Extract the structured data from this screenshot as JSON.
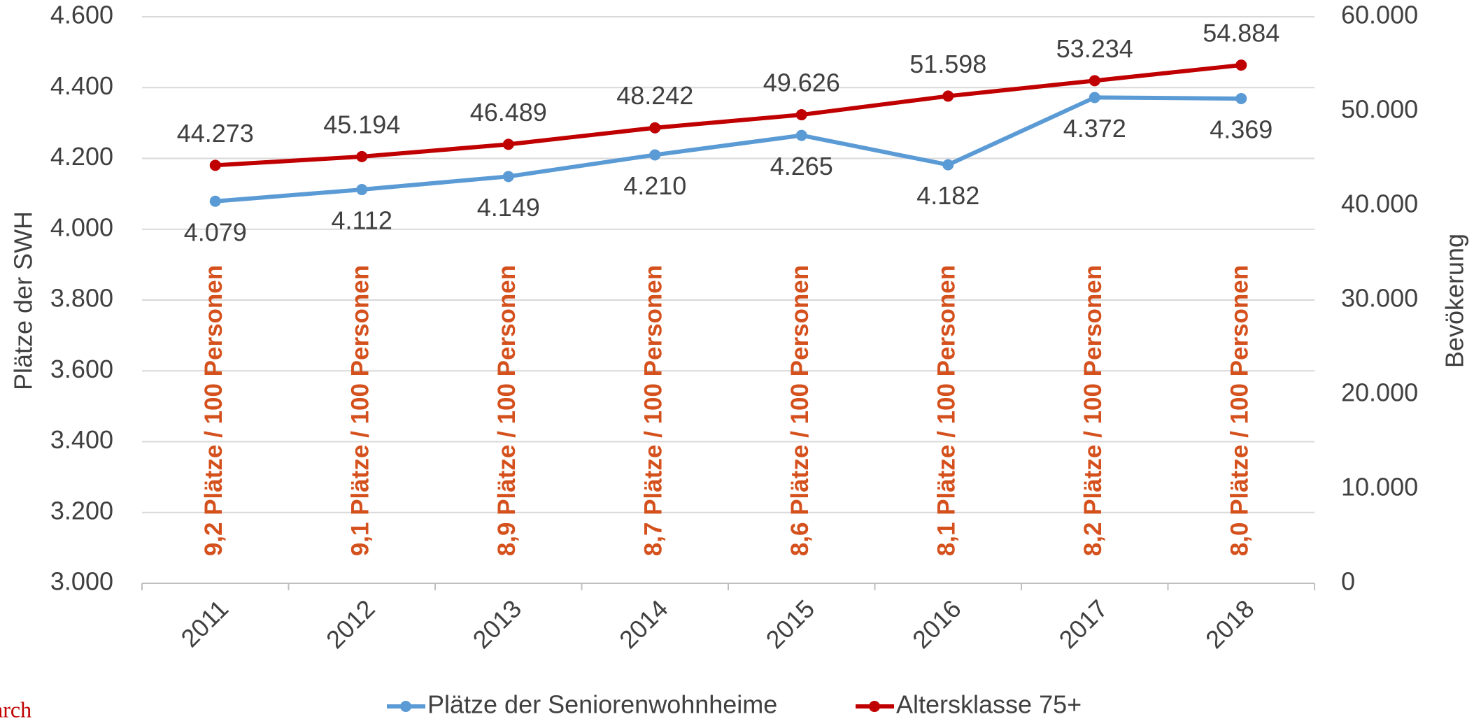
{
  "chart_data": {
    "type": "line",
    "categories": [
      "2011",
      "2012",
      "2013",
      "2014",
      "2015",
      "2016",
      "2017",
      "2018"
    ],
    "series": [
      {
        "name": "Plätze der Seniorenwohnheime",
        "color": "#5b9bd5",
        "axis": "y",
        "values": [
          4079,
          4112,
          4149,
          4210,
          4265,
          4182,
          4372,
          4369
        ],
        "value_labels": [
          "4.079",
          "4.112",
          "4.149",
          "4.210",
          "4.265",
          "4.182",
          "4.372",
          "4.369"
        ]
      },
      {
        "name": "Altersklasse 75+",
        "color": "#c00000",
        "axis": "y2",
        "values": [
          44273,
          45194,
          46489,
          48242,
          49626,
          51598,
          53234,
          54884
        ],
        "value_labels": [
          "44.273",
          "45.194",
          "46.489",
          "48.242",
          "49.626",
          "51.598",
          "53.234",
          "54.884"
        ]
      }
    ],
    "annotations": [
      "9,2 Plätze / 100 Personen",
      "9,1 Plätze / 100 Personen",
      "8,9 Plätze / 100 Personen",
      "8,7 Plätze / 100 Personen",
      "8,6 Plätze / 100 Personen",
      "8,1 Plätze / 100 Personen",
      "8,2 Plätze / 100 Personen",
      "8,0 Plätze / 100 Personen"
    ],
    "annotation_color": "#d4501c",
    "ylabel": "Plätze der SWH",
    "y2label": "Bevökerung",
    "ylim": [
      3000,
      4600
    ],
    "yticks": [
      {
        "value": 3000,
        "label": "3.000"
      },
      {
        "value": 3200,
        "label": "3.200"
      },
      {
        "value": 3400,
        "label": "3.400"
      },
      {
        "value": 3600,
        "label": "3.600"
      },
      {
        "value": 3800,
        "label": "3.800"
      },
      {
        "value": 4000,
        "label": "4.000"
      },
      {
        "value": 4200,
        "label": "4.200"
      },
      {
        "value": 4400,
        "label": "4.400"
      },
      {
        "value": 4600,
        "label": "4.600"
      }
    ],
    "y2lim": [
      0,
      60000
    ],
    "y2ticks": [
      0,
      {
        "value": 10000,
        "label": "10.000"
      },
      {
        "value": 20000,
        "label": "20.000"
      },
      {
        "value": 30000,
        "label": "30.000"
      },
      {
        "value": 40000,
        "label": "40.000"
      },
      {
        "value": 50000,
        "label": "50.000"
      },
      {
        "value": 60000,
        "label": "60.000"
      }
    ],
    "grid": true,
    "legend": "bottom",
    "source_fragment": "arch"
  }
}
